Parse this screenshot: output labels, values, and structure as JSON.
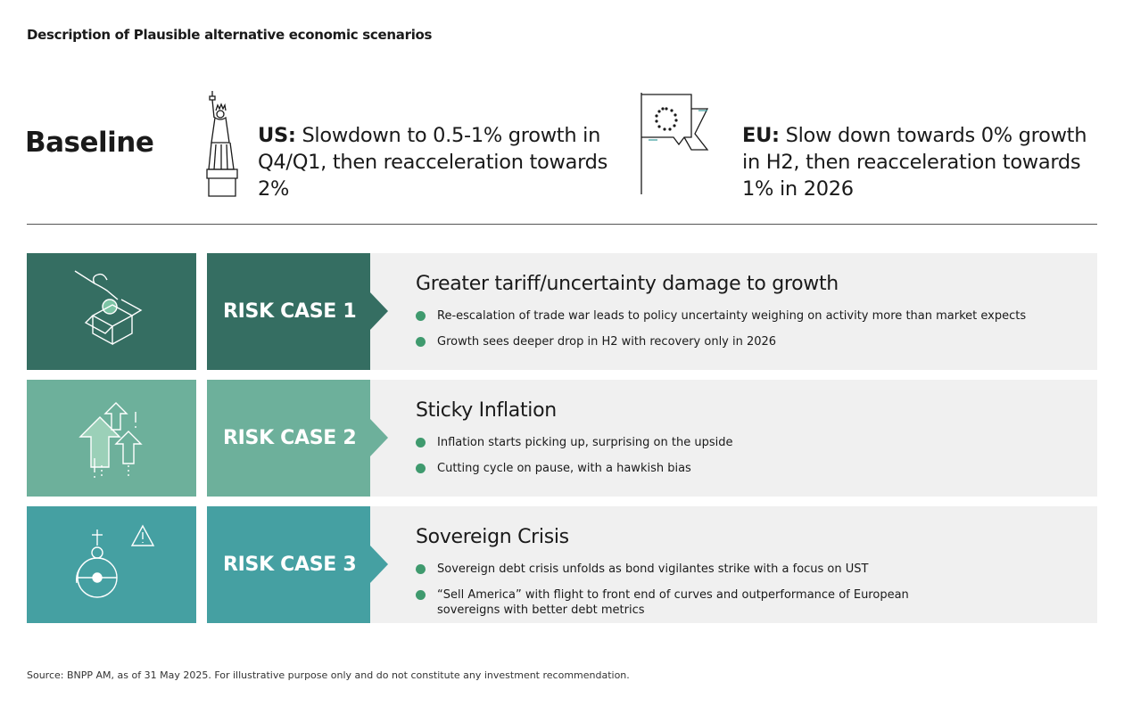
{
  "title": "Description of Plausible alternative economic scenarios",
  "baseline": {
    "label": "Baseline",
    "us": {
      "region": "US",
      "text": "Slowdown to 0.5-1% growth in Q4/Q1, then reacceleration towards 2%",
      "icon": "statue-of-liberty-icon"
    },
    "eu": {
      "region": "EU",
      "text": "Slow down towards 0% growth in H2, then reacceleration towards 1% in 2026",
      "icon": "eu-flag-icon"
    }
  },
  "risk_cases": [
    {
      "label": "RISK CASE 1",
      "title": "Greater tariff/uncertainty damage to growth",
      "bullets": [
        "Re-escalation of trade war leads to policy uncertainty weighing on activity more than market expects",
        "Growth sees deeper drop in H2 with recovery only in 2026"
      ],
      "icon": "hand-coin-box-icon",
      "color": "#356e62"
    },
    {
      "label": "RISK CASE 2",
      "title": "Sticky Inflation",
      "bullets": [
        "Inflation starts picking up, surprising on the upside",
        "Cutting cycle on pause, with a hawkish bias"
      ],
      "icon": "rising-arrows-icon",
      "color": "#6db09b"
    },
    {
      "label": "RISK CASE 3",
      "title": "Sovereign Crisis",
      "bullets": [
        "Sovereign debt crisis unfolds as bond vigilantes strike with a focus on UST",
        "“Sell America” with flight to front end of curves and outperformance of European sovereigns with better debt metrics"
      ],
      "icon": "crown-warning-icon",
      "color": "#45a0a2"
    }
  ],
  "bullet_color": "#3f9a6e",
  "source": "Source: BNPP AM, as of 31 May 2025. For illustrative purpose only and do not constitute any investment recommendation."
}
